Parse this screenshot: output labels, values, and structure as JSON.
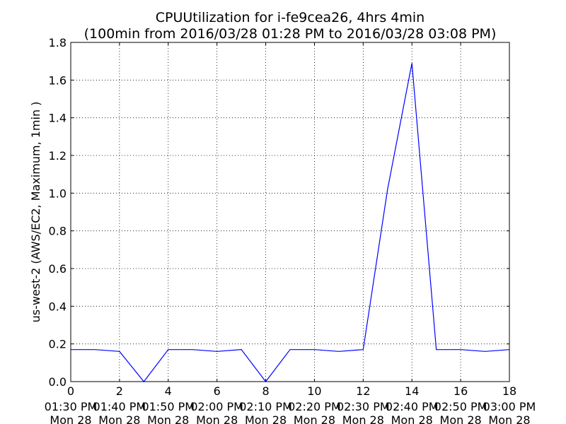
{
  "chart_data": {
    "type": "line",
    "title": "CPUUtilization for i-fe9cea26, 4hrs 4min",
    "subtitle": "(100min from 2016/03/28 01:28 PM to 2016/03/28 03:08 PM)",
    "xlabel": "",
    "ylabel": "us-west-2 (AWS/EC2, Maximum, 1min )",
    "xlim": [
      0,
      18
    ],
    "ylim": [
      0,
      1.8
    ],
    "grid": true,
    "x_ticks": [
      0,
      2,
      4,
      6,
      8,
      10,
      12,
      14,
      16,
      18
    ],
    "x_tick_labels": [
      {
        "value": 0,
        "line1": "0",
        "line2": "01:30 PM",
        "line3": "Mon 28"
      },
      {
        "value": 2,
        "line1": "2",
        "line2": "01:40 PM",
        "line3": "Mon 28"
      },
      {
        "value": 4,
        "line1": "4",
        "line2": "01:50 PM",
        "line3": "Mon 28"
      },
      {
        "value": 6,
        "line1": "6",
        "line2": "02:00 PM",
        "line3": "Mon 28"
      },
      {
        "value": 8,
        "line1": "8",
        "line2": "02:10 PM",
        "line3": "Mon 28"
      },
      {
        "value": 10,
        "line1": "10",
        "line2": "02:20 PM",
        "line3": "Mon 28"
      },
      {
        "value": 12,
        "line1": "12",
        "line2": "02:30 PM",
        "line3": "Mon 28"
      },
      {
        "value": 14,
        "line1": "14",
        "line2": "02:40 PM",
        "line3": "Mon 28"
      },
      {
        "value": 16,
        "line1": "16",
        "line2": "02:50 PM",
        "line3": "Mon 28"
      },
      {
        "value": 18,
        "line1": "18",
        "line2": "03:00 PM",
        "line3": "Mon 28"
      }
    ],
    "y_ticks": [
      0.0,
      0.2,
      0.4,
      0.6,
      0.8,
      1.0,
      1.2,
      1.4,
      1.6,
      1.8
    ],
    "y_tick_labels": [
      "0.0",
      "0.2",
      "0.4",
      "0.6",
      "0.8",
      "1.0",
      "1.2",
      "1.4",
      "1.6",
      "1.8"
    ],
    "series": [
      {
        "color": "#0000ff",
        "x": [
          0,
          1,
          2,
          3,
          4,
          5,
          6,
          7,
          8,
          9,
          10,
          11,
          12,
          13,
          14,
          15,
          16,
          17,
          18
        ],
        "y": [
          0.17,
          0.17,
          0.16,
          0.0,
          0.17,
          0.17,
          0.16,
          0.17,
          0.0,
          0.17,
          0.17,
          0.16,
          0.17,
          1.02,
          1.69,
          0.17,
          0.17,
          0.16,
          0.17
        ]
      }
    ]
  }
}
